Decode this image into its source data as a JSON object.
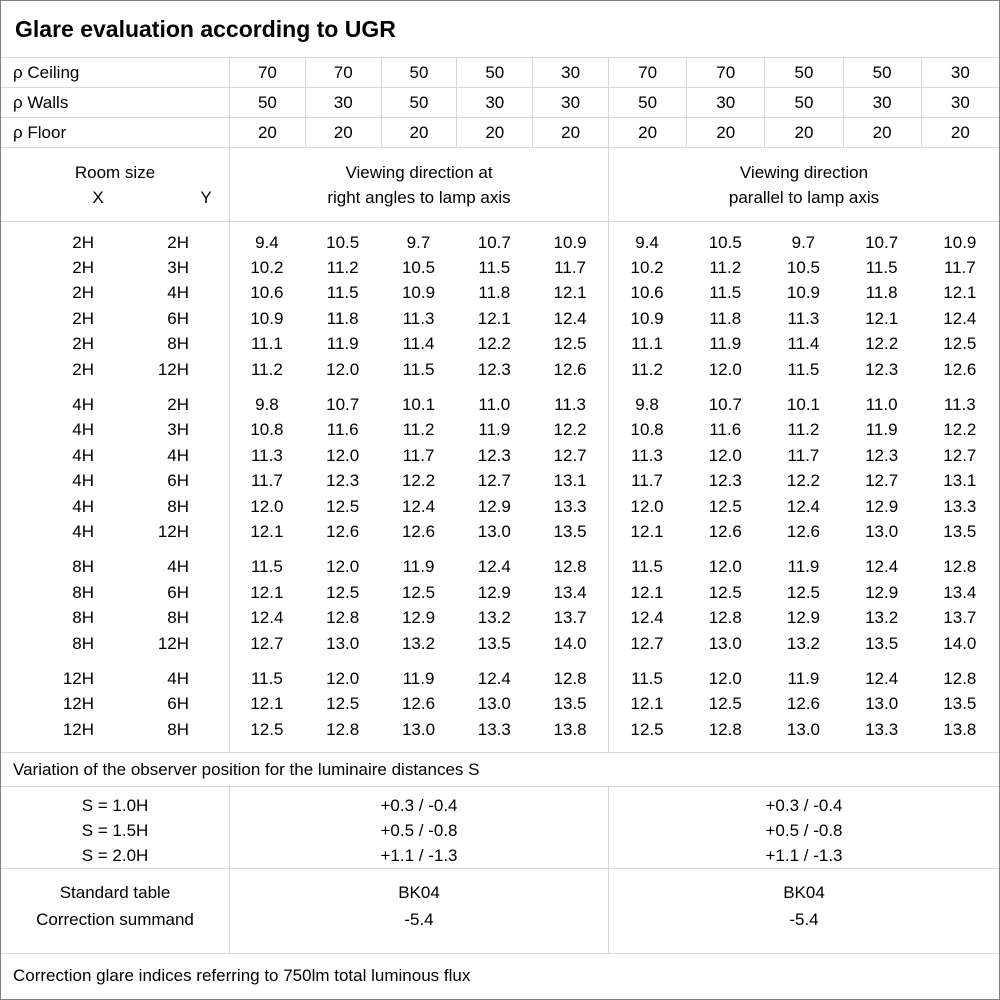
{
  "title": "Glare evaluation according to UGR",
  "colors": {
    "background": "#ffffff",
    "text": "#000000",
    "grid_border": "#d8d8d8",
    "frame_border": "#7f7f7f"
  },
  "reflectances": {
    "rows": [
      {
        "label": "ρ Ceiling",
        "values": [
          "70",
          "70",
          "50",
          "50",
          "30",
          "70",
          "70",
          "50",
          "50",
          "30"
        ]
      },
      {
        "label": "ρ Walls",
        "values": [
          "50",
          "30",
          "50",
          "30",
          "30",
          "50",
          "30",
          "50",
          "30",
          "30"
        ]
      },
      {
        "label": "ρ Floor",
        "values": [
          "20",
          "20",
          "20",
          "20",
          "20",
          "20",
          "20",
          "20",
          "20",
          "20"
        ]
      }
    ]
  },
  "header": {
    "room_size": "Room size",
    "x": "X",
    "y": "Y",
    "left_heading": [
      "Viewing direction at",
      "right angles to lamp axis"
    ],
    "right_heading": [
      "Viewing direction",
      "parallel to lamp axis"
    ]
  },
  "ugr": {
    "blocks": [
      {
        "rows": [
          {
            "x": "2H",
            "y": "2H",
            "left": [
              "9.4",
              "10.5",
              "9.7",
              "10.7",
              "10.9"
            ],
            "right": [
              "9.4",
              "10.5",
              "9.7",
              "10.7",
              "10.9"
            ]
          },
          {
            "x": "2H",
            "y": "3H",
            "left": [
              "10.2",
              "11.2",
              "10.5",
              "11.5",
              "11.7"
            ],
            "right": [
              "10.2",
              "11.2",
              "10.5",
              "11.5",
              "11.7"
            ]
          },
          {
            "x": "2H",
            "y": "4H",
            "left": [
              "10.6",
              "11.5",
              "10.9",
              "11.8",
              "12.1"
            ],
            "right": [
              "10.6",
              "11.5",
              "10.9",
              "11.8",
              "12.1"
            ]
          },
          {
            "x": "2H",
            "y": "6H",
            "left": [
              "10.9",
              "11.8",
              "11.3",
              "12.1",
              "12.4"
            ],
            "right": [
              "10.9",
              "11.8",
              "11.3",
              "12.1",
              "12.4"
            ]
          },
          {
            "x": "2H",
            "y": "8H",
            "left": [
              "11.1",
              "11.9",
              "11.4",
              "12.2",
              "12.5"
            ],
            "right": [
              "11.1",
              "11.9",
              "11.4",
              "12.2",
              "12.5"
            ]
          },
          {
            "x": "2H",
            "y": "12H",
            "left": [
              "11.2",
              "12.0",
              "11.5",
              "12.3",
              "12.6"
            ],
            "right": [
              "11.2",
              "12.0",
              "11.5",
              "12.3",
              "12.6"
            ]
          }
        ]
      },
      {
        "rows": [
          {
            "x": "4H",
            "y": "2H",
            "left": [
              "9.8",
              "10.7",
              "10.1",
              "11.0",
              "11.3"
            ],
            "right": [
              "9.8",
              "10.7",
              "10.1",
              "11.0",
              "11.3"
            ]
          },
          {
            "x": "4H",
            "y": "3H",
            "left": [
              "10.8",
              "11.6",
              "11.2",
              "11.9",
              "12.2"
            ],
            "right": [
              "10.8",
              "11.6",
              "11.2",
              "11.9",
              "12.2"
            ]
          },
          {
            "x": "4H",
            "y": "4H",
            "left": [
              "11.3",
              "12.0",
              "11.7",
              "12.3",
              "12.7"
            ],
            "right": [
              "11.3",
              "12.0",
              "11.7",
              "12.3",
              "12.7"
            ]
          },
          {
            "x": "4H",
            "y": "6H",
            "left": [
              "11.7",
              "12.3",
              "12.2",
              "12.7",
              "13.1"
            ],
            "right": [
              "11.7",
              "12.3",
              "12.2",
              "12.7",
              "13.1"
            ]
          },
          {
            "x": "4H",
            "y": "8H",
            "left": [
              "12.0",
              "12.5",
              "12.4",
              "12.9",
              "13.3"
            ],
            "right": [
              "12.0",
              "12.5",
              "12.4",
              "12.9",
              "13.3"
            ]
          },
          {
            "x": "4H",
            "y": "12H",
            "left": [
              "12.1",
              "12.6",
              "12.6",
              "13.0",
              "13.5"
            ],
            "right": [
              "12.1",
              "12.6",
              "12.6",
              "13.0",
              "13.5"
            ]
          }
        ]
      },
      {
        "rows": [
          {
            "x": "8H",
            "y": "4H",
            "left": [
              "11.5",
              "12.0",
              "11.9",
              "12.4",
              "12.8"
            ],
            "right": [
              "11.5",
              "12.0",
              "11.9",
              "12.4",
              "12.8"
            ]
          },
          {
            "x": "8H",
            "y": "6H",
            "left": [
              "12.1",
              "12.5",
              "12.5",
              "12.9",
              "13.4"
            ],
            "right": [
              "12.1",
              "12.5",
              "12.5",
              "12.9",
              "13.4"
            ]
          },
          {
            "x": "8H",
            "y": "8H",
            "left": [
              "12.4",
              "12.8",
              "12.9",
              "13.2",
              "13.7"
            ],
            "right": [
              "12.4",
              "12.8",
              "12.9",
              "13.2",
              "13.7"
            ]
          },
          {
            "x": "8H",
            "y": "12H",
            "left": [
              "12.7",
              "13.0",
              "13.2",
              "13.5",
              "14.0"
            ],
            "right": [
              "12.7",
              "13.0",
              "13.2",
              "13.5",
              "14.0"
            ]
          }
        ]
      },
      {
        "rows": [
          {
            "x": "12H",
            "y": "4H",
            "left": [
              "11.5",
              "12.0",
              "11.9",
              "12.4",
              "12.8"
            ],
            "right": [
              "11.5",
              "12.0",
              "11.9",
              "12.4",
              "12.8"
            ]
          },
          {
            "x": "12H",
            "y": "6H",
            "left": [
              "12.1",
              "12.5",
              "12.6",
              "13.0",
              "13.5"
            ],
            "right": [
              "12.1",
              "12.5",
              "12.6",
              "13.0",
              "13.5"
            ]
          },
          {
            "x": "12H",
            "y": "8H",
            "left": [
              "12.5",
              "12.8",
              "13.0",
              "13.3",
              "13.8"
            ],
            "right": [
              "12.5",
              "12.8",
              "13.0",
              "13.3",
              "13.8"
            ]
          }
        ]
      }
    ]
  },
  "variation": {
    "note": "Variation of the observer position for the luminaire distances S",
    "rows": [
      {
        "label": "S = 1.0H",
        "left": "+0.3 / -0.4",
        "right": "+0.3 / -0.4"
      },
      {
        "label": "S = 1.5H",
        "left": "+0.5 / -0.8",
        "right": "+0.5 / -0.8"
      },
      {
        "label": "S = 2.0H",
        "left": "+1.1 / -1.3",
        "right": "+1.1 / -1.3"
      }
    ]
  },
  "standard": {
    "rows": [
      {
        "label": "Standard table",
        "left": "BK04",
        "right": "BK04"
      },
      {
        "label": "Correction summand",
        "left": "-5.4",
        "right": "-5.4"
      }
    ]
  },
  "footer": "Correction glare indices referring to 750lm total luminous flux"
}
